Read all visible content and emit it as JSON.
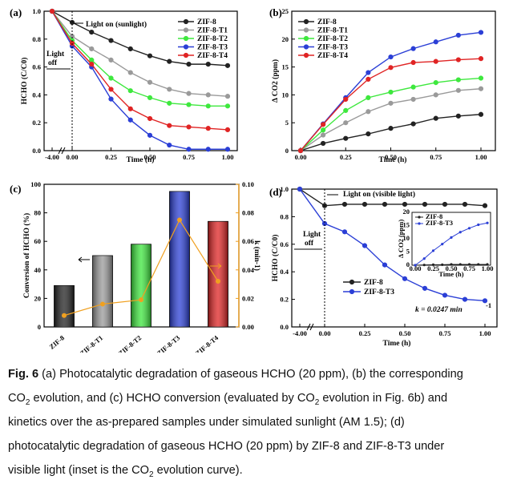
{
  "panels": {
    "a": "(a)",
    "b": "(b)",
    "c": "(c)",
    "d": "(d)"
  },
  "annotations": {
    "a_light_on": "Light on (sunlight)",
    "a_light_off": "Light off",
    "d_light_on": "Light on (visible light)",
    "d_light_off": "Light off",
    "d_k": "k = 0.0247 min"
  },
  "caption": {
    "line1": "Fig. 6 (a) Photocatalytic degradation of gaseous HCHO (20 ppm), (b) the corresponding",
    "line2": "CO2 evolution, and (c) HCHO conversion (evaluated by CO2 evolution in Fig. 6b) and",
    "line3": "kinetics over the as-prepared samples under simulated sunlight (AM 1.5); (d)",
    "line4": "photocatalytic degradation of gaseous HCHO (20 ppm) by ZIF-8 and ZIF-8-T3 under",
    "line5": "visible light (inset is the CO2 evolution curve)."
  },
  "colors": {
    "ZIF-8": "#222222",
    "ZIF-8-T1": "#9a9a9a",
    "ZIF-8-T2": "#3ee83e",
    "ZIF-8-T3": "#2b3fd6",
    "ZIF-8-T4": "#e02424",
    "k_line": "#f0a020",
    "k_label": "#1f2bd0"
  },
  "chart_data": [
    {
      "panel": "a",
      "type": "line",
      "xlabel": "Time (h)",
      "ylabel": "HCHO (C/C0)",
      "xticks": [
        "-4.00",
        "0.00",
        "0.25",
        "0.50",
        "0.75",
        "1.00"
      ],
      "yticks": [
        "0.0",
        "0.2",
        "0.4",
        "0.6",
        "0.8",
        "1.0"
      ],
      "xlim": [
        0,
        1
      ],
      "ylim": [
        0,
        1.0
      ],
      "x": [
        0,
        0.125,
        0.25,
        0.375,
        0.5,
        0.625,
        0.75,
        0.875,
        1.0
      ],
      "dark_x": -4.0,
      "series": [
        {
          "name": "ZIF-8",
          "dark": 1.0,
          "values": [
            0.92,
            0.85,
            0.79,
            0.73,
            0.68,
            0.64,
            0.62,
            0.62,
            0.61
          ]
        },
        {
          "name": "ZIF-8-T1",
          "dark": 1.0,
          "values": [
            0.82,
            0.73,
            0.65,
            0.56,
            0.49,
            0.44,
            0.41,
            0.4,
            0.39
          ]
        },
        {
          "name": "ZIF-8-T2",
          "dark": 1.0,
          "values": [
            0.79,
            0.65,
            0.52,
            0.43,
            0.38,
            0.34,
            0.33,
            0.32,
            0.32
          ]
        },
        {
          "name": "ZIF-8-T3",
          "dark": 1.0,
          "values": [
            0.75,
            0.6,
            0.37,
            0.22,
            0.11,
            0.04,
            0.01,
            0.01,
            0.01
          ]
        },
        {
          "name": "ZIF-8-T4",
          "dark": 1.0,
          "values": [
            0.77,
            0.62,
            0.44,
            0.3,
            0.23,
            0.18,
            0.17,
            0.16,
            0.15
          ]
        }
      ]
    },
    {
      "panel": "b",
      "type": "line",
      "xlabel": "Time (h)",
      "ylabel": "Δ CO2 (ppm)",
      "xticks": [
        "0.00",
        "0.25",
        "0.50",
        "0.75",
        "1.00"
      ],
      "yticks": [
        "0",
        "5",
        "10",
        "15",
        "20",
        "25"
      ],
      "xlim": [
        0,
        1
      ],
      "ylim": [
        0,
        25
      ],
      "x": [
        0,
        0.125,
        0.25,
        0.375,
        0.5,
        0.625,
        0.75,
        0.875,
        1.0
      ],
      "series": [
        {
          "name": "ZIF-8",
          "values": [
            0,
            1.3,
            2.2,
            3.0,
            4.0,
            4.8,
            5.8,
            6.2,
            6.5
          ]
        },
        {
          "name": "ZIF-8-T1",
          "values": [
            0,
            2.8,
            5.0,
            7.0,
            8.5,
            9.2,
            10.0,
            10.8,
            11.1
          ]
        },
        {
          "name": "ZIF-8-T2",
          "values": [
            0,
            3.7,
            7.2,
            9.5,
            10.5,
            11.4,
            12.2,
            12.7,
            13.0
          ]
        },
        {
          "name": "ZIF-8-T3",
          "values": [
            0,
            4.8,
            9.5,
            14.0,
            16.8,
            18.3,
            19.5,
            20.7,
            21.2
          ]
        },
        {
          "name": "ZIF-8-T4",
          "values": [
            0,
            4.7,
            9.2,
            12.8,
            14.9,
            15.8,
            16.0,
            16.3,
            16.5
          ]
        }
      ]
    },
    {
      "panel": "c",
      "type": "bar",
      "ylabel": "Conversion of HCHO (%)",
      "y2label": "k (min-1)",
      "categories": [
        "ZIF-8",
        "ZIF-8-T1",
        "ZIF-8-T2",
        "ZIF-8-T3",
        "ZIF-8-T4"
      ],
      "values": [
        29,
        50,
        58,
        95,
        74
      ],
      "yticks": [
        "0",
        "20",
        "40",
        "60",
        "80",
        "100"
      ],
      "ylim": [
        0,
        100
      ],
      "y2": {
        "values": [
          0.008,
          0.016,
          0.019,
          0.075,
          0.032
        ],
        "ticks": [
          "0.00",
          "0.02",
          "0.04",
          "0.06",
          "0.08",
          "0.10"
        ],
        "ylim": [
          0,
          0.1
        ]
      }
    },
    {
      "panel": "d",
      "type": "line",
      "xlabel": "Time (h)",
      "ylabel": "HCHO (C/C0)",
      "xticks": [
        "-4.00",
        "0.00",
        "0.25",
        "0.50",
        "0.75",
        "1.00"
      ],
      "yticks": [
        "0.0",
        "0.2",
        "0.4",
        "0.6",
        "0.8",
        "1.0"
      ],
      "xlim": [
        0,
        1
      ],
      "ylim": [
        0,
        1.0
      ],
      "x": [
        0,
        0.125,
        0.25,
        0.375,
        0.5,
        0.625,
        0.75,
        0.875,
        1.0
      ],
      "dark_x": -4.0,
      "series": [
        {
          "name": "ZIF-8",
          "dark": 1.0,
          "values": [
            0.88,
            0.89,
            0.89,
            0.89,
            0.89,
            0.89,
            0.89,
            0.89,
            0.88
          ]
        },
        {
          "name": "ZIF-8-T3",
          "dark": 1.0,
          "values": [
            0.75,
            0.69,
            0.59,
            0.45,
            0.35,
            0.28,
            0.23,
            0.2,
            0.19
          ]
        }
      ],
      "inset": {
        "xlabel": "Time (h)",
        "ylabel": "Δ CO2 (ppm)",
        "xticks": [
          "0.00",
          "0.25",
          "0.50",
          "0.75",
          "1.00"
        ],
        "yticks": [
          "0",
          "5",
          "10",
          "15",
          "20"
        ],
        "xlim": [
          0,
          1
        ],
        "ylim": [
          0,
          20
        ],
        "x": [
          0,
          0.125,
          0.25,
          0.375,
          0.5,
          0.625,
          0.75,
          0.875,
          1.0
        ],
        "series": [
          {
            "name": "ZIF-8",
            "values": [
              0,
              0.1,
              0.2,
              0.2,
              0.3,
              0.3,
              0.3,
              0.3,
              0.3
            ]
          },
          {
            "name": "ZIF-8-T3",
            "values": [
              0,
              2.5,
              5.5,
              8.0,
              10.5,
              12.5,
              14.0,
              15.3,
              16.0
            ]
          }
        ]
      }
    }
  ]
}
